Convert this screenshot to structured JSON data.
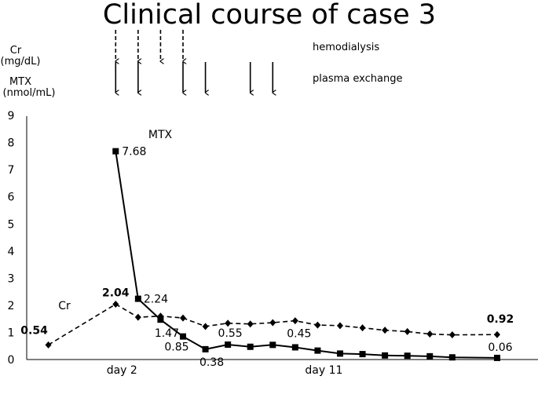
{
  "chart_data": {
    "type": "line",
    "title": "Clinical course of case 3",
    "ylabel_cr": [
      "Cr",
      "(mg/dL)"
    ],
    "ylabel_mtx": [
      "MTX",
      "(nmol/mL)"
    ],
    "ylim": [
      0,
      9
    ],
    "yticks": [
      "0",
      "1",
      "2",
      "3",
      "4",
      "5",
      "6",
      "7",
      "8",
      "9"
    ],
    "x_labels": [
      {
        "x": 5,
        "text": "day 2"
      },
      {
        "x": 14,
        "text": "day 11"
      }
    ],
    "legend": {
      "hemodialysis": "hemodialysis",
      "plasma_exchange": "plasma exchange"
    },
    "hemodialysis_days": [
      5,
      6,
      7,
      8
    ],
    "plasma_exchange_days": [
      5,
      6,
      8,
      9,
      11,
      12
    ],
    "series": [
      {
        "name": "Cr",
        "style": "dashed",
        "marker": "diamond",
        "color": "#000000",
        "points": [
          [
            2,
            0.54
          ],
          [
            5,
            2.04
          ],
          [
            6,
            1.56
          ],
          [
            7,
            1.6
          ],
          [
            8,
            1.53
          ],
          [
            9,
            1.22
          ],
          [
            10,
            1.34
          ],
          [
            11,
            1.31
          ],
          [
            12,
            1.36
          ],
          [
            13,
            1.43
          ],
          [
            14,
            1.27
          ],
          [
            15,
            1.25
          ],
          [
            16,
            1.17
          ],
          [
            17,
            1.08
          ],
          [
            18,
            1.03
          ],
          [
            19,
            0.94
          ],
          [
            20,
            0.91
          ],
          [
            22,
            0.92
          ]
        ]
      },
      {
        "name": "MTX",
        "style": "solid",
        "marker": "square",
        "color": "#000000",
        "points": [
          [
            5,
            7.68
          ],
          [
            6,
            2.24
          ],
          [
            7,
            1.47
          ],
          [
            8,
            0.85
          ],
          [
            9,
            0.38
          ],
          [
            10,
            0.55
          ],
          [
            11,
            0.47
          ],
          [
            12,
            0.54
          ],
          [
            13,
            0.45
          ],
          [
            14,
            0.33
          ],
          [
            15,
            0.22
          ],
          [
            16,
            0.2
          ],
          [
            17,
            0.15
          ],
          [
            18,
            0.14
          ],
          [
            19,
            0.12
          ],
          [
            20,
            0.08
          ],
          [
            22,
            0.06
          ]
        ]
      }
    ],
    "data_labels": [
      {
        "series": "Cr",
        "x": 2,
        "text": "0.54",
        "bold": true
      },
      {
        "series": "Cr",
        "x": 5,
        "text": "2.04",
        "bold": true
      },
      {
        "series": "Cr",
        "x": 22,
        "text": "0.92",
        "bold": true
      },
      {
        "series": "MTX",
        "x": 5,
        "text": "7.68"
      },
      {
        "series": "MTX",
        "x": 6,
        "text": "2.24"
      },
      {
        "series": "MTX",
        "x": 7,
        "text": "1.47"
      },
      {
        "series": "MTX",
        "x": 8,
        "text": "0.85"
      },
      {
        "series": "MTX",
        "x": 9,
        "text": "0.38"
      },
      {
        "series": "MTX",
        "x": 10,
        "text": "0.55"
      },
      {
        "series": "MTX",
        "x": 13,
        "text": "0.45"
      },
      {
        "series": "MTX",
        "x": 22,
        "text": "0.06"
      }
    ]
  }
}
